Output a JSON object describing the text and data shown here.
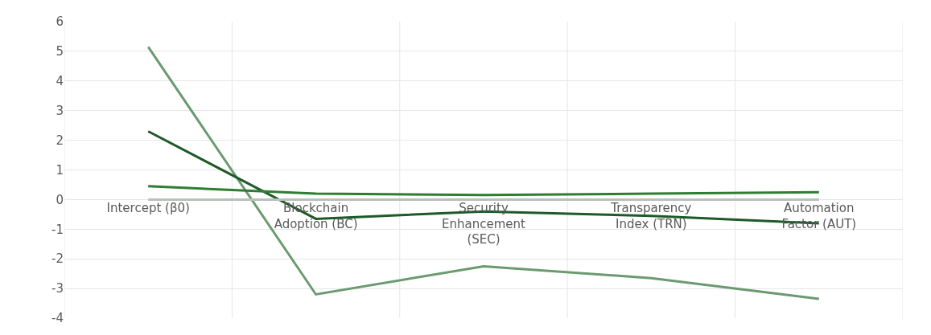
{
  "chart_data": {
    "type": "line",
    "categories": [
      "Intercept (β0)",
      "Blockchain Adoption (BC)",
      "Security Enhancement (SEC)",
      "Transparency Index (TRN)",
      "Automation Factor (AUT)"
    ],
    "series": [
      {
        "color": "#6b9a70",
        "values": [
          5.15,
          -3.2,
          -2.25,
          -2.65,
          -3.35
        ]
      },
      {
        "color": "#1e5a28",
        "values": [
          2.3,
          -0.65,
          -0.4,
          -0.55,
          -0.8
        ]
      },
      {
        "color": "#2e7d32",
        "values": [
          0.45,
          0.2,
          0.15,
          0.2,
          0.25
        ]
      },
      {
        "color": "#b8c0b8",
        "values": [
          0,
          0,
          0,
          0,
          0
        ]
      }
    ],
    "ylim": [
      -4,
      6
    ],
    "yticks": [
      -4,
      -3,
      -2,
      -1,
      0,
      1,
      2,
      3,
      4,
      5,
      6
    ],
    "grid": true,
    "marker": "none",
    "line_style": "solid"
  }
}
